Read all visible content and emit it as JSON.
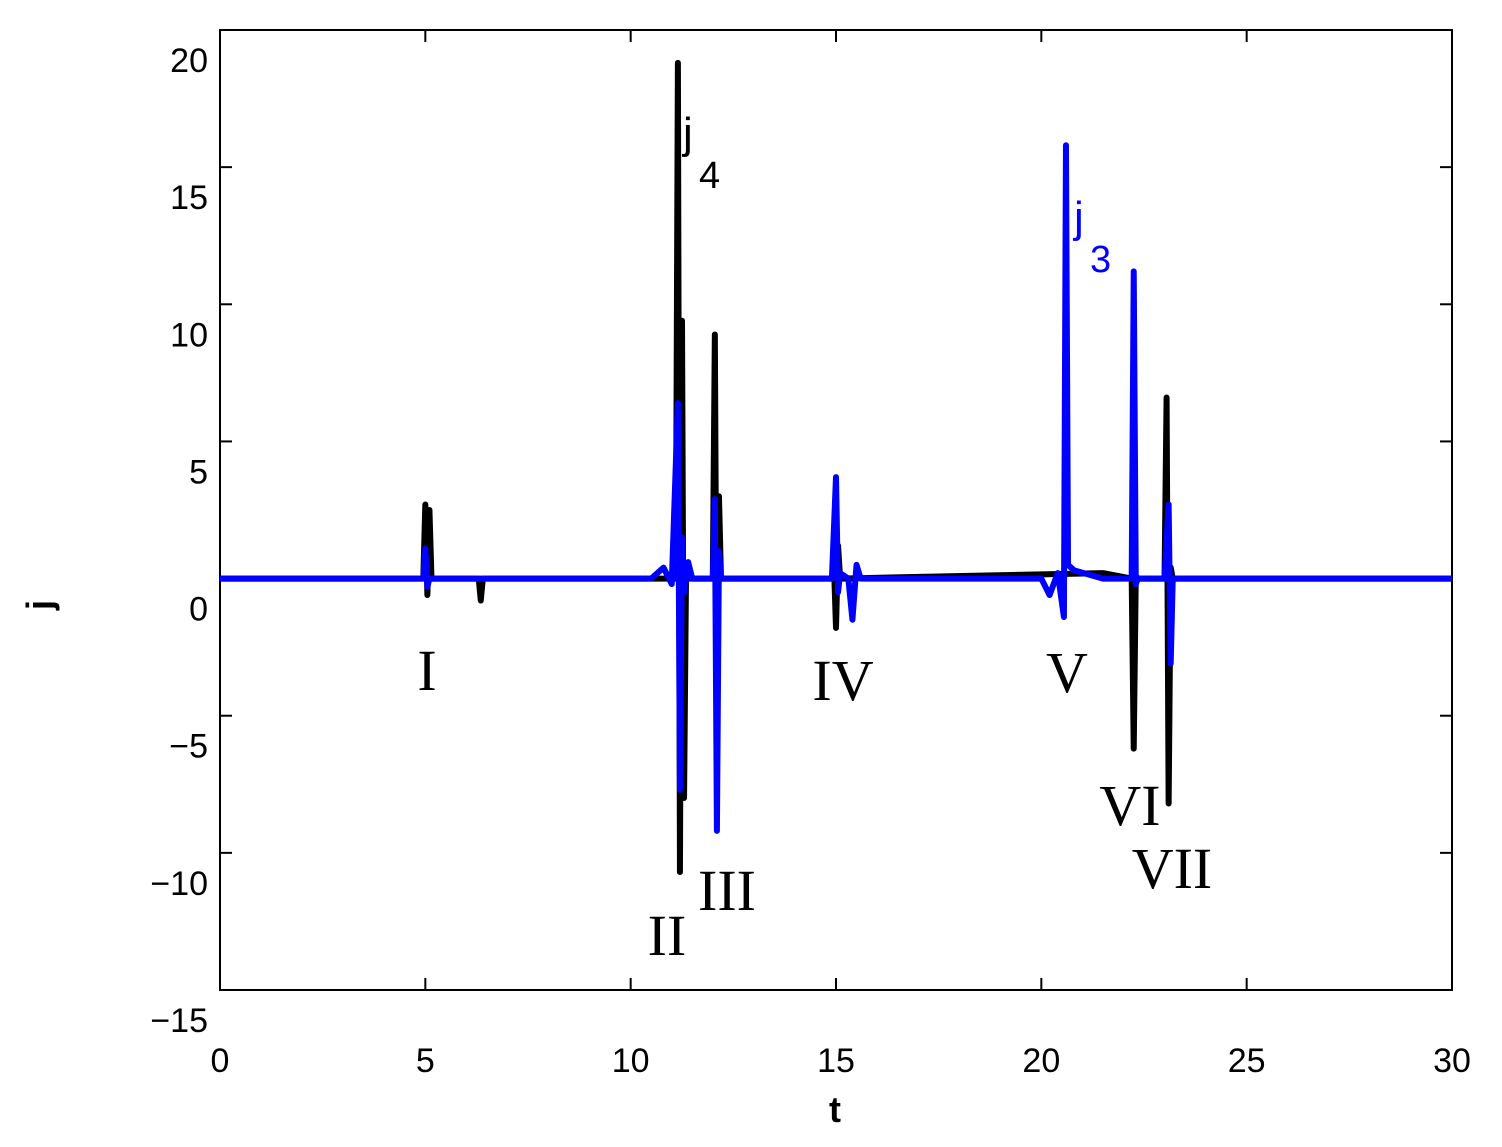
{
  "chart_data": {
    "type": "line",
    "xlabel": "t",
    "ylabel": "j",
    "xlim": [
      0,
      30
    ],
    "ylim": [
      -15,
      20
    ],
    "xticks": [
      0,
      5,
      10,
      15,
      20,
      25,
      30
    ],
    "yticks": [
      {
        "value": -15,
        "label": "−15"
      },
      {
        "value": -10,
        "label": "−10"
      },
      {
        "value": -5,
        "label": "−5"
      },
      0,
      5,
      10,
      15,
      20
    ],
    "series": [
      {
        "color": "#000000",
        "x": [
          0,
          4.95,
          5.0,
          5.05,
          5.1,
          5.15,
          6.3,
          6.35,
          6.4,
          10.6,
          11.1,
          11.15,
          11.2,
          11.25,
          11.3,
          11.35,
          11.4,
          12.0,
          12.05,
          12.1,
          12.15,
          12.2,
          14.9,
          14.95,
          15.0,
          15.05,
          15.1,
          21.5,
          22.2,
          22.25,
          22.3,
          22.35,
          23.0,
          23.05,
          23.1,
          23.15,
          23.2,
          30
        ],
        "values": [
          0,
          0,
          2.7,
          -0.6,
          2.5,
          0,
          0,
          -0.8,
          0,
          0,
          0,
          18.8,
          -10.7,
          9.4,
          -8,
          0.5,
          0,
          0,
          8.9,
          -5.9,
          3,
          0,
          0,
          0.5,
          -1.8,
          1.2,
          0,
          0.2,
          0,
          -6.2,
          0.1,
          0,
          0,
          6.6,
          -8.2,
          0.4,
          0,
          0
        ]
      },
      {
        "color": "#0000ff",
        "x": [
          0,
          4.95,
          5.0,
          5.05,
          5.1,
          10.5,
          10.8,
          11.0,
          11.15,
          11.2,
          11.25,
          11.3,
          11.4,
          11.5,
          12.0,
          12.05,
          12.1,
          12.15,
          12.2,
          14.9,
          15.0,
          15.05,
          15.1,
          15.3,
          15.4,
          15.5,
          15.6,
          20.0,
          20.2,
          20.4,
          20.55,
          20.6,
          20.65,
          20.8,
          21.5,
          22.2,
          22.25,
          22.3,
          22.35,
          23.0,
          23.1,
          23.15,
          23.2,
          30
        ],
        "values": [
          0,
          0,
          1.1,
          -0.3,
          0,
          0,
          0.4,
          -0.2,
          6.4,
          -7.7,
          1.5,
          -0.5,
          0.6,
          0,
          0,
          2.9,
          -9.2,
          1,
          0,
          0,
          3.7,
          -0.5,
          0.2,
          0,
          -1.5,
          0.5,
          0,
          0,
          -0.6,
          0.2,
          -1.4,
          15.8,
          0.5,
          0.3,
          0,
          0,
          11.2,
          -0.2,
          0,
          0,
          2.7,
          -3.1,
          0,
          0
        ]
      }
    ],
    "series_labels": [
      {
        "text": "j",
        "sub": "4"
      },
      {
        "text": "j",
        "sub": "3"
      }
    ],
    "annotations": [
      "I",
      "II",
      "III",
      "IV",
      "V",
      "VI",
      "VII"
    ]
  }
}
